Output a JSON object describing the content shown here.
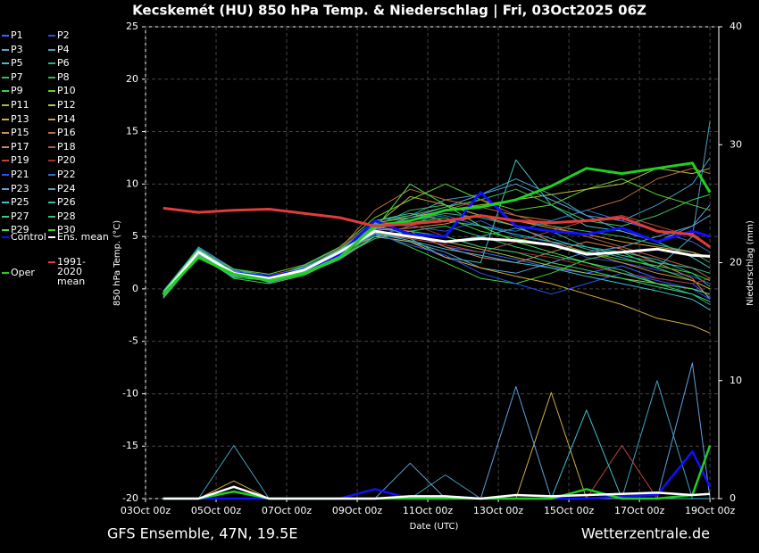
{
  "chart_data": {
    "type": "line",
    "title": "Kecskemét  (HU)  850 hPa Temp. & Niederschlag | Fri, 03Oct2025 06Z",
    "footer_left": "GFS Ensemble, 47N, 19.5E",
    "footer_right": "Wetterzentrale.de",
    "xlabel": "Date (UTC)",
    "ylabel": "850 hPa Temp. (°C)",
    "y2label": "Niederschlag (mm)",
    "grid": true,
    "xlim": [
      "2025-10-03T00:00Z",
      "2025-10-19T06:00Z"
    ],
    "xticks": [
      {
        "value": "2025-10-03T00:00Z",
        "label": "03Oct 00z"
      },
      {
        "value": "2025-10-05T00:00Z",
        "label": "05Oct 00z"
      },
      {
        "value": "2025-10-07T00:00Z",
        "label": "07Oct 00z"
      },
      {
        "value": "2025-10-09T00:00Z",
        "label": "09Oct 00z"
      },
      {
        "value": "2025-10-11T00:00Z",
        "label": "11Oct 00z"
      },
      {
        "value": "2025-10-13T00:00Z",
        "label": "13Oct 00z"
      },
      {
        "value": "2025-10-15T00:00Z",
        "label": "15Oct 00z"
      },
      {
        "value": "2025-10-17T00:00Z",
        "label": "17Oct 00z"
      },
      {
        "value": "2025-10-19T00:00Z",
        "label": "19Oct 00z"
      }
    ],
    "ylim": [
      -20,
      25
    ],
    "yticks": [
      -20,
      -15,
      -10,
      -5,
      0,
      5,
      10,
      15,
      20,
      25
    ],
    "y2lim": [
      0,
      40
    ],
    "y2ticks": [
      0,
      10,
      20,
      30,
      40
    ],
    "x": [
      "2025-10-03T12:00Z",
      "2025-10-04T12:00Z",
      "2025-10-05T12:00Z",
      "2025-10-06T12:00Z",
      "2025-10-07T12:00Z",
      "2025-10-08T12:00Z",
      "2025-10-09T12:00Z",
      "2025-10-10T12:00Z",
      "2025-10-11T12:00Z",
      "2025-10-12T12:00Z",
      "2025-10-13T12:00Z",
      "2025-10-14T12:00Z",
      "2025-10-15T12:00Z",
      "2025-10-16T12:00Z",
      "2025-10-17T12:00Z",
      "2025-10-18T12:00Z",
      "2025-10-19T00:00Z"
    ],
    "series": [
      {
        "name": "P1",
        "color": "#4060ff",
        "values": [
          -0.8,
          3.2,
          1.6,
          0.9,
          1.6,
          3.1,
          5.8,
          5.3,
          4.0,
          3.5,
          2.8,
          2.0,
          1.5,
          2.2,
          1.0,
          0.5,
          -0.8
        ]
      },
      {
        "name": "P2",
        "color": "#3050d0",
        "values": [
          -0.3,
          3.8,
          1.2,
          1.2,
          2.0,
          3.8,
          6.2,
          6.0,
          5.5,
          6.5,
          5.0,
          4.5,
          3.0,
          2.5,
          1.8,
          1.2,
          0.5
        ]
      },
      {
        "name": "P3",
        "color": "#5fa0d0",
        "values": [
          -0.6,
          3.0,
          1.8,
          0.6,
          1.4,
          2.8,
          5.0,
          4.5,
          3.5,
          2.0,
          1.5,
          2.5,
          3.5,
          4.0,
          5.0,
          6.0,
          7.0
        ]
      },
      {
        "name": "P4",
        "color": "#40a0c0",
        "values": [
          -0.4,
          4.0,
          1.9,
          1.1,
          2.2,
          3.9,
          6.5,
          7.0,
          8.5,
          9.0,
          10.5,
          9.0,
          7.0,
          6.5,
          8.0,
          10.0,
          12.5
        ]
      },
      {
        "name": "P5",
        "color": "#40c0c0",
        "values": [
          -0.7,
          3.6,
          1.3,
          0.8,
          1.9,
          3.3,
          5.2,
          4.8,
          3.0,
          2.5,
          12.3,
          8.0,
          6.0,
          5.5,
          4.5,
          3.0,
          2.0
        ]
      },
      {
        "name": "P6",
        "color": "#30b090",
        "values": [
          -0.5,
          3.4,
          1.7,
          1.3,
          1.7,
          3.6,
          5.7,
          6.5,
          7.2,
          6.8,
          6.0,
          5.5,
          4.0,
          3.5,
          2.8,
          1.5,
          0.2
        ]
      },
      {
        "name": "P7",
        "color": "#30c070",
        "values": [
          -0.2,
          3.9,
          1.4,
          0.7,
          1.5,
          3.0,
          4.8,
          5.5,
          6.0,
          5.0,
          4.0,
          3.2,
          2.5,
          1.8,
          0.5,
          -0.5,
          -1.5
        ]
      },
      {
        "name": "P8",
        "color": "#40b060",
        "values": [
          -0.9,
          3.1,
          1.5,
          1.0,
          1.8,
          3.4,
          6.0,
          7.5,
          8.0,
          7.0,
          6.5,
          6.0,
          5.5,
          5.0,
          4.2,
          3.5,
          2.5
        ]
      },
      {
        "name": "P9",
        "color": "#40d040",
        "values": [
          -0.6,
          3.3,
          1.0,
          0.5,
          1.3,
          2.9,
          5.4,
          4.0,
          2.5,
          1.0,
          0.5,
          1.5,
          2.8,
          3.5,
          2.0,
          0.8,
          0.0
        ]
      },
      {
        "name": "P10",
        "color": "#60d030",
        "values": [
          -0.4,
          3.7,
          1.9,
          1.4,
          2.3,
          4.0,
          6.8,
          8.5,
          10.0,
          8.5,
          7.5,
          8.0,
          9.5,
          10.5,
          9.0,
          8.0,
          7.5
        ]
      },
      {
        "name": "P11",
        "color": "#a0c040",
        "values": [
          -0.5,
          3.5,
          1.6,
          1.1,
          1.7,
          3.2,
          5.5,
          5.0,
          4.5,
          3.8,
          3.0,
          2.2,
          1.5,
          1.0,
          0.5,
          0.0,
          -0.5
        ]
      },
      {
        "name": "P12",
        "color": "#c0c040",
        "values": [
          -0.3,
          3.6,
          1.5,
          0.9,
          1.9,
          3.7,
          6.3,
          6.8,
          7.5,
          8.0,
          8.5,
          9.0,
          9.5,
          10.0,
          11.5,
          11.0,
          11.5
        ]
      },
      {
        "name": "P13",
        "color": "#d0b040",
        "values": [
          -0.7,
          3.4,
          1.3,
          1.2,
          2.1,
          3.5,
          5.0,
          4.5,
          3.0,
          2.0,
          1.2,
          0.5,
          -0.5,
          -1.5,
          -2.8,
          -3.5,
          -4.2
        ]
      },
      {
        "name": "P14",
        "color": "#d0a040",
        "values": [
          -0.5,
          3.2,
          1.8,
          0.8,
          1.6,
          3.3,
          6.0,
          8.8,
          8.0,
          7.0,
          6.5,
          5.8,
          5.2,
          4.5,
          4.0,
          3.5,
          3.0
        ]
      },
      {
        "name": "P15",
        "color": "#d09050",
        "values": [
          -0.6,
          3.8,
          1.2,
          1.0,
          1.5,
          3.1,
          5.6,
          5.8,
          6.2,
          7.0,
          6.0,
          4.5,
          3.5,
          2.5,
          1.5,
          0.8,
          0.0
        ]
      },
      {
        "name": "P16",
        "color": "#c07040",
        "values": [
          -0.4,
          3.1,
          1.4,
          1.3,
          2.0,
          3.8,
          7.5,
          9.5,
          8.5,
          7.8,
          7.0,
          6.5,
          7.5,
          8.5,
          10.5,
          11.5,
          11.0
        ]
      },
      {
        "name": "P17",
        "color": "#d08060",
        "values": [
          -0.8,
          3.5,
          1.7,
          0.9,
          1.8,
          3.6,
          5.9,
          5.5,
          4.0,
          3.0,
          2.5,
          3.5,
          4.5,
          3.8,
          2.5,
          1.0,
          -1.0
        ]
      },
      {
        "name": "P18",
        "color": "#b06040",
        "values": [
          -0.5,
          3.6,
          1.5,
          1.1,
          1.6,
          3.0,
          5.0,
          6.0,
          7.5,
          8.5,
          7.0,
          6.0,
          5.0,
          4.0,
          3.0,
          2.0,
          1.0
        ]
      },
      {
        "name": "P19",
        "color": "#c04040",
        "values": [
          -0.3,
          3.4,
          1.6,
          0.7,
          1.4,
          3.2,
          5.4,
          4.8,
          4.2,
          3.5,
          4.5,
          5.5,
          6.5,
          7.0,
          6.0,
          5.0,
          4.0
        ]
      },
      {
        "name": "P20",
        "color": "#a03030",
        "values": [
          -0.6,
          3.7,
          1.3,
          1.0,
          1.9,
          3.9,
          6.4,
          6.2,
          5.0,
          4.0,
          3.5,
          3.0,
          2.2,
          1.5,
          1.0,
          0.5,
          1.0
        ]
      },
      {
        "name": "P21",
        "color": "#3050ff",
        "values": [
          -0.5,
          3.3,
          1.5,
          1.2,
          2.0,
          3.4,
          5.2,
          4.2,
          3.2,
          1.5,
          0.5,
          -0.5,
          0.5,
          1.5,
          0.8,
          0.0,
          -1.0
        ]
      },
      {
        "name": "P22",
        "color": "#3070d0",
        "values": [
          -0.7,
          3.9,
          1.8,
          0.8,
          1.7,
          3.5,
          6.1,
          6.5,
          7.0,
          6.0,
          5.5,
          6.5,
          7.5,
          6.5,
          5.5,
          4.5,
          3.5
        ]
      },
      {
        "name": "P23",
        "color": "#60a0e0",
        "values": [
          -0.4,
          3.2,
          1.2,
          1.1,
          1.5,
          3.1,
          5.8,
          6.8,
          7.8,
          9.0,
          10.0,
          8.5,
          7.0,
          5.5,
          4.5,
          6.0,
          8.0
        ]
      },
      {
        "name": "P24",
        "color": "#50a0c0",
        "values": [
          -0.5,
          3.6,
          1.7,
          0.6,
          1.8,
          3.7,
          6.0,
          5.2,
          4.5,
          5.0,
          5.8,
          4.8,
          3.8,
          3.0,
          2.0,
          5.0,
          16.0
        ]
      },
      {
        "name": "P25",
        "color": "#40c0d0",
        "values": [
          -0.6,
          3.4,
          1.4,
          1.3,
          1.6,
          3.3,
          5.3,
          4.6,
          3.8,
          3.2,
          2.5,
          2.0,
          1.2,
          0.5,
          -0.2,
          -1.0,
          -2.0
        ]
      },
      {
        "name": "P26",
        "color": "#30c0a0",
        "values": [
          -0.3,
          3.7,
          1.6,
          1.0,
          2.1,
          3.6,
          6.5,
          7.2,
          6.5,
          6.0,
          5.2,
          4.5,
          4.0,
          3.2,
          2.5,
          2.0,
          1.5
        ]
      },
      {
        "name": "P27",
        "color": "#30d080",
        "values": [
          -0.8,
          3.1,
          1.1,
          0.8,
          1.4,
          2.9,
          5.0,
          5.5,
          5.0,
          4.0,
          3.5,
          2.5,
          1.8,
          1.0,
          0.2,
          -0.5,
          -1.2
        ]
      },
      {
        "name": "P28",
        "color": "#40c060",
        "values": [
          -0.5,
          3.5,
          1.9,
          1.2,
          1.9,
          3.8,
          6.2,
          7.0,
          7.8,
          8.5,
          9.5,
          8.0,
          6.5,
          6.0,
          7.0,
          8.5,
          9.0
        ]
      },
      {
        "name": "P29",
        "color": "#50e050",
        "values": [
          -0.4,
          3.8,
          1.3,
          0.9,
          1.7,
          3.2,
          5.7,
          10.0,
          8.0,
          6.0,
          4.5,
          3.5,
          2.5,
          1.5,
          0.5,
          0.0,
          -0.5
        ]
      },
      {
        "name": "P30",
        "color": "#40d030",
        "values": [
          -0.6,
          3.3,
          1.5,
          1.1,
          1.8,
          3.5,
          5.9,
          6.3,
          6.8,
          5.5,
          4.8,
          4.2,
          3.5,
          2.8,
          2.2,
          1.5,
          0.8
        ]
      },
      {
        "name": "Control",
        "color": "#1010ff",
        "values": [
          -0.5,
          3.5,
          1.5,
          1.2,
          1.8,
          3.3,
          6.5,
          5.2,
          5.0,
          9.2,
          6.0,
          5.5,
          5.2,
          5.8,
          4.5,
          5.5,
          5.0
        ]
      },
      {
        "name": "Ens. mean",
        "color": "#ffffff",
        "values": [
          -0.5,
          3.5,
          1.5,
          1.0,
          1.8,
          3.5,
          5.5,
          5.0,
          4.5,
          4.8,
          4.6,
          4.2,
          3.3,
          3.5,
          3.8,
          3.2,
          3.1
        ]
      },
      {
        "name": "Oper",
        "color": "#20d020",
        "values": [
          -0.5,
          3.0,
          1.4,
          0.8,
          1.5,
          3.0,
          6.0,
          6.5,
          7.5,
          7.8,
          8.5,
          9.8,
          11.5,
          11.0,
          11.5,
          12.0,
          9.2
        ]
      },
      {
        "name": "1991-2020 mean",
        "color": "#e03c3c",
        "values": [
          7.7,
          7.3,
          7.5,
          7.6,
          7.2,
          6.8,
          6.0,
          6.2,
          6.5,
          7.0,
          6.5,
          6.3,
          6.5,
          6.8,
          5.5,
          5.2,
          4.0
        ]
      }
    ],
    "precip_series": [
      {
        "name": "P4",
        "color": "#40a0c0",
        "axis": "y2",
        "values": [
          0,
          0,
          4.5,
          0,
          0,
          0,
          0,
          0,
          2.0,
          0,
          0,
          0,
          0,
          0,
          10.0,
          0,
          0
        ]
      },
      {
        "name": "P13",
        "color": "#d0b040",
        "axis": "y2",
        "values": [
          0,
          0,
          1.5,
          0,
          0,
          0,
          0,
          0,
          0,
          0,
          0,
          9.0,
          0,
          0,
          0,
          0,
          0
        ]
      },
      {
        "name": "P19",
        "color": "#c04040",
        "axis": "y2",
        "values": [
          0,
          0,
          0,
          0,
          0,
          0,
          0,
          0,
          0,
          0,
          0,
          0,
          0,
          4.5,
          0,
          0,
          0
        ]
      },
      {
        "name": "P23",
        "color": "#60a0e0",
        "axis": "y2",
        "values": [
          0,
          0,
          0,
          0,
          0,
          0,
          0,
          3.0,
          0,
          0,
          9.5,
          0,
          0,
          0,
          0,
          11.5,
          0
        ]
      },
      {
        "name": "P25",
        "color": "#40c0d0",
        "axis": "y2",
        "values": [
          0,
          0,
          0,
          0,
          0,
          0,
          0,
          0,
          0,
          0,
          0,
          0,
          7.5,
          0,
          0,
          0,
          0
        ]
      },
      {
        "name": "Control",
        "color": "#1010ff",
        "axis": "y2",
        "values": [
          0,
          0,
          0,
          0,
          0,
          0,
          0.8,
          0,
          0.2,
          0,
          0,
          0,
          0,
          0.2,
          0.3,
          4.0,
          1.0
        ]
      },
      {
        "name": "Oper",
        "color": "#20d020",
        "axis": "y2",
        "values": [
          0,
          0,
          0.6,
          0,
          0,
          0,
          0,
          0,
          0,
          0,
          0,
          0,
          0.8,
          0,
          0,
          0.3,
          4.5
        ]
      },
      {
        "name": "Ens. mean",
        "color": "#ffffff",
        "axis": "y2",
        "values": [
          0,
          0,
          1.0,
          0,
          0,
          0,
          0,
          0.2,
          0.2,
          0,
          0.3,
          0.2,
          0.3,
          0.4,
          0.5,
          0.3,
          0.4
        ]
      }
    ]
  }
}
